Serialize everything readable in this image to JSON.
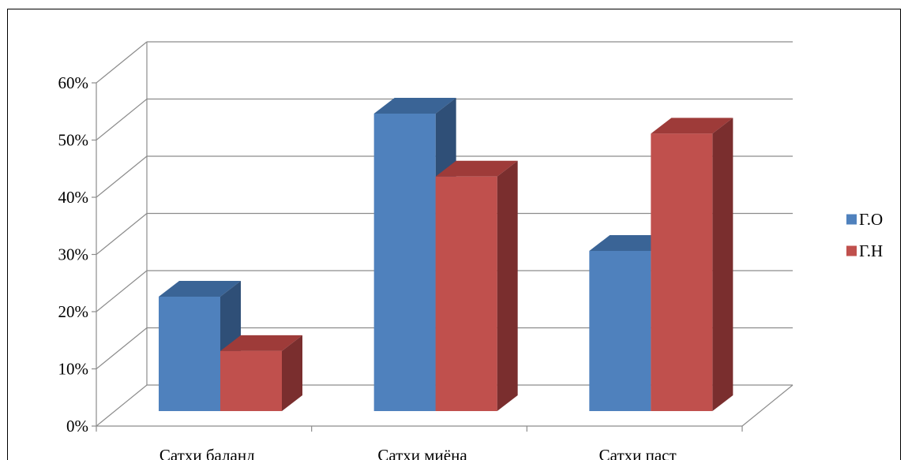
{
  "chart_data": {
    "type": "bar",
    "title": "",
    "xlabel": "",
    "ylabel": "",
    "categories": [
      "Сатҳи баланд",
      "Сатҳи миёна",
      "Сатҳи паст"
    ],
    "series": [
      {
        "name": "Г.О",
        "values": [
          20,
          52,
          28
        ],
        "color": "#4F81BD",
        "top_color": "#3A6496",
        "side_color": "#2F4F77"
      },
      {
        "name": "Г.Н",
        "values": [
          10.5,
          41,
          48.5
        ],
        "color": "#C0504D",
        "top_color": "#9E3B39",
        "side_color": "#7A2E2E"
      }
    ],
    "ylim": [
      0,
      60
    ],
    "yticks": [
      0,
      10,
      20,
      30,
      40,
      50,
      60
    ],
    "ytick_labels": [
      "0%",
      "10%",
      "20%",
      "30%",
      "40%",
      "50%",
      "60%"
    ],
    "grid": true,
    "legend_position": "right"
  }
}
